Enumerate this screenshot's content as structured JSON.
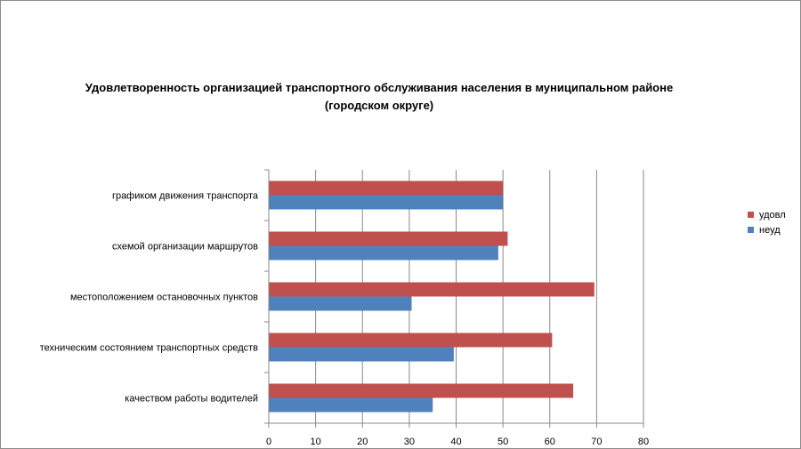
{
  "chart_data": {
    "type": "bar",
    "orientation": "horizontal",
    "title": "Удовлетворенность организацией транспортного обслуживания населения в муниципальном районе (городском округе)",
    "categories": [
      "графиком движения транспорта",
      "схемой организации маршрутов",
      "местоположением остановочных пунктов",
      "техническим состоянием транспортных средств",
      "качеством работы водителей"
    ],
    "series": [
      {
        "name": "удовл",
        "color": "#c0504d",
        "values": [
          50,
          51,
          69.5,
          60.5,
          65
        ]
      },
      {
        "name": "неуд",
        "color": "#4f81bd",
        "values": [
          50,
          49,
          30.5,
          39.5,
          35
        ]
      }
    ],
    "xlim": [
      0,
      80
    ],
    "xticks": [
      0,
      10,
      20,
      30,
      40,
      50,
      60,
      70,
      80
    ],
    "grid": true,
    "legend": "right",
    "xlabel": "",
    "ylabel": ""
  }
}
